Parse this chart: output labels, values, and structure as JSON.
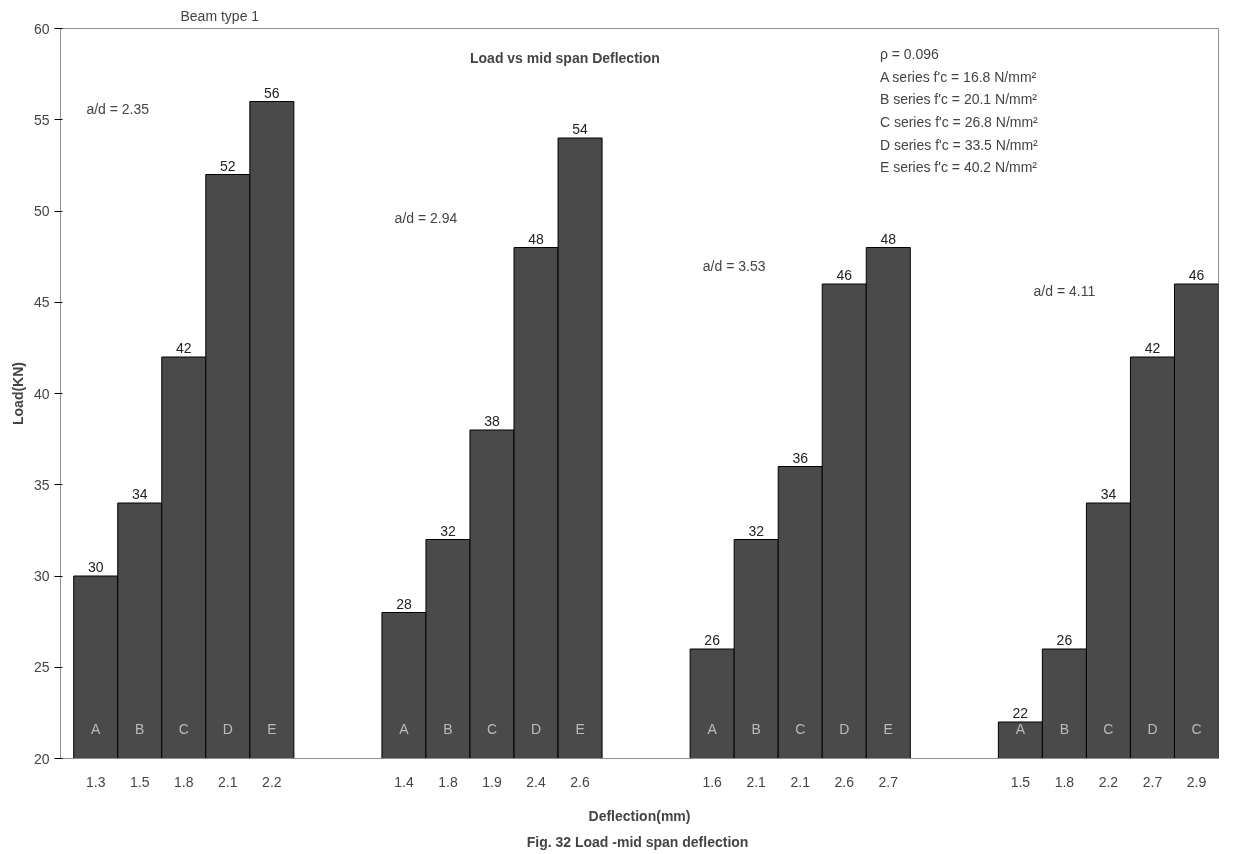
{
  "chart_data": {
    "type": "bar",
    "title": "Load vs mid span  Deflection",
    "xlabel": "Deflection(mm)",
    "ylabel": "Load(KN)",
    "categories": [
      "1.3",
      "1.5",
      "1.8",
      "2.1",
      "2.2",
      null,
      null,
      "1.4",
      "1.8",
      "1.9",
      "2.4",
      "2.6",
      null,
      null,
      "1.6",
      "2.1",
      "2.1",
      "2.6",
      "2.7",
      null,
      null,
      "1.5",
      "1.8",
      "2.2",
      "2.7",
      "2.9"
    ],
    "values": [
      30,
      34,
      42,
      52,
      56,
      null,
      null,
      28,
      32,
      38,
      48,
      54,
      null,
      null,
      26,
      32,
      36,
      46,
      48,
      null,
      null,
      22,
      26,
      34,
      42,
      46
    ],
    "color": "#4a4a4a",
    "data_labels": true,
    "ylim": [
      20,
      60
    ],
    "yticks": [
      20,
      25,
      30,
      35,
      40,
      45,
      50,
      55,
      60
    ],
    "grid": false,
    "annotations": [
      "Beam type 1",
      "ρ = 0.096",
      "A series f'c = 16.8 N/mm²",
      "B series f'c = 20.1 N/mm²",
      "C series f'c = 26.8 N/mm²",
      "D series f'c = 33.5 N/mm²",
      "E series f'c = 40.2 N/mm²",
      "A",
      "B",
      "C",
      "D",
      "E",
      "A",
      "B",
      "C",
      "D",
      "E",
      "A",
      "B",
      "C",
      "D",
      "E",
      "A",
      "B",
      "C",
      "D",
      "C",
      "a/d = 2.35",
      "a/d = 2.94",
      "a/d = 3.53",
      "a/d = 4.11",
      "Fig. 32  Load -mid span deflection"
    ]
  }
}
